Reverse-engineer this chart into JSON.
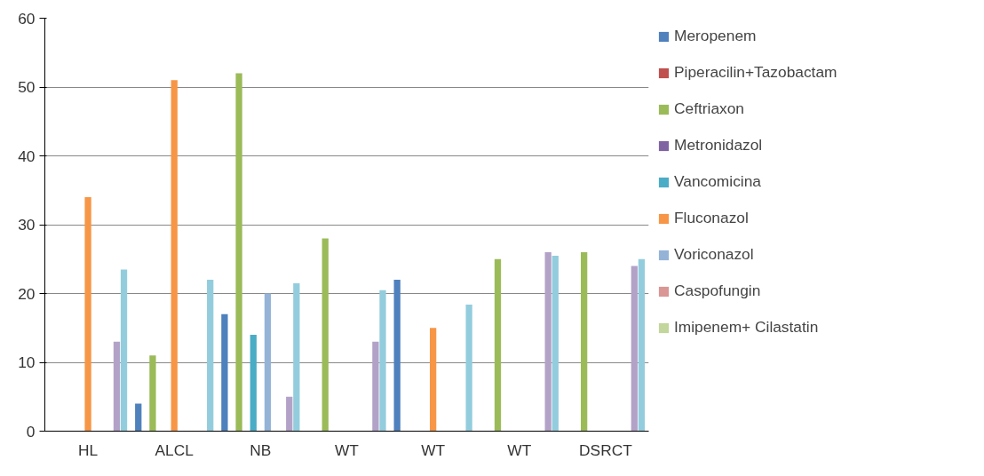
{
  "chart_data": {
    "type": "bar",
    "categories": [
      "HL",
      "ALCL",
      "NB",
      "WT",
      "WT",
      "WT",
      "DSRCT"
    ],
    "ylim": [
      0,
      60
    ],
    "yticks": [
      0,
      10,
      20,
      30,
      40,
      50,
      60
    ],
    "grid": "y",
    "legend": "right",
    "series": [
      {
        "name": "Meropenem",
        "color": "#4f81bd",
        "values": [
          null,
          4,
          17,
          null,
          22,
          null,
          null
        ]
      },
      {
        "name": "Piperacilin+Tazobactam",
        "color": "#c0504d",
        "values": [
          null,
          null,
          null,
          null,
          null,
          null,
          null
        ]
      },
      {
        "name": "Ceftriaxon",
        "color": "#9bbb59",
        "values": [
          null,
          11,
          52,
          28,
          null,
          25,
          26
        ]
      },
      {
        "name": "Metronidazol",
        "color": "#8064a2",
        "values": [
          null,
          null,
          null,
          null,
          null,
          null,
          null
        ]
      },
      {
        "name": "Vancomicina",
        "color": "#4bacc6",
        "values": [
          null,
          null,
          14,
          null,
          null,
          null,
          null
        ]
      },
      {
        "name": "Fluconazol",
        "color": "#f79646",
        "values": [
          34,
          51,
          null,
          null,
          15,
          null,
          null
        ]
      },
      {
        "name": "Voriconazol",
        "color": "#95b3d7",
        "values": [
          null,
          null,
          20,
          null,
          null,
          null,
          null
        ]
      },
      {
        "name": "Caspofungin",
        "color": "#d99694",
        "values": [
          null,
          null,
          null,
          null,
          null,
          null,
          null
        ]
      },
      {
        "name": "Imipenem+ Cilastatin",
        "color": "#c3d69b",
        "values": [
          null,
          null,
          null,
          null,
          null,
          null,
          null
        ]
      },
      {
        "color": "#b3a2c7",
        "values": [
          13,
          null,
          5,
          13,
          null,
          26,
          24
        ]
      },
      {
        "color": "#93cddd",
        "values": [
          23.5,
          22,
          21.5,
          20.5,
          18.4,
          25.5,
          25
        ]
      }
    ]
  }
}
